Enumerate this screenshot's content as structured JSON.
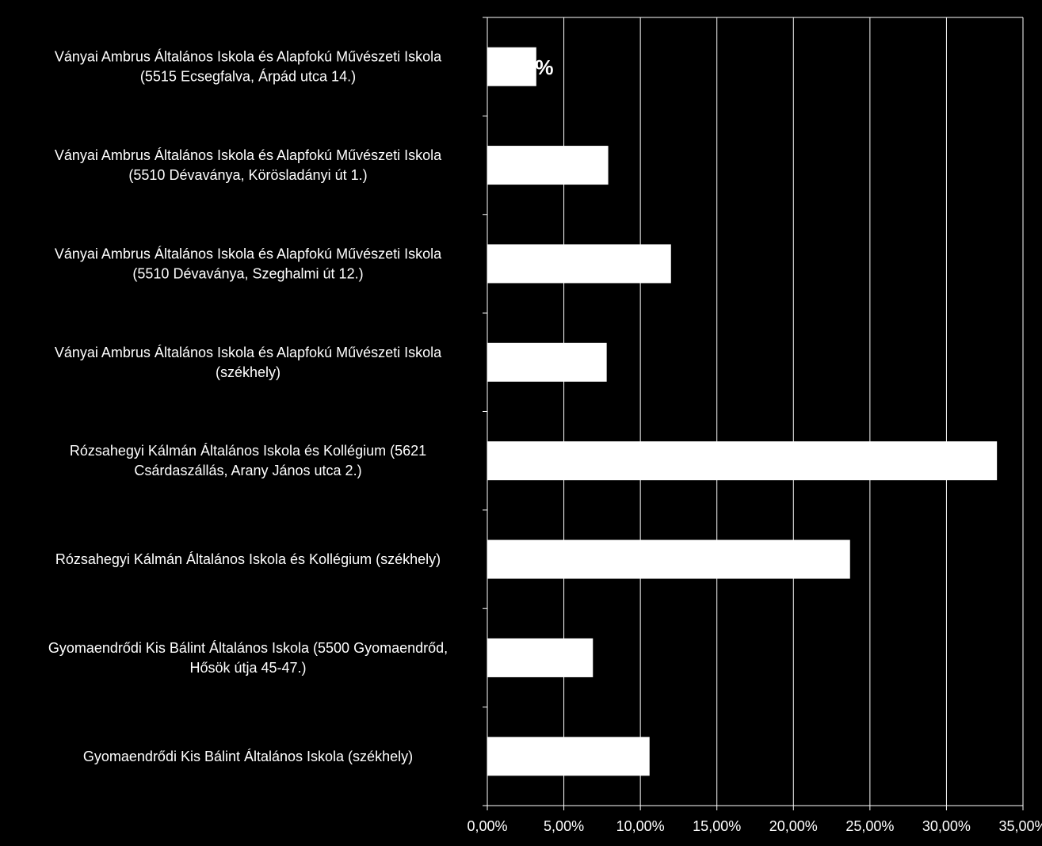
{
  "chart_data": {
    "type": "bar",
    "orientation": "horizontal",
    "categories": [
      [
        "Ványai Ambrus Általános Iskola és Alapfokú Művészeti Iskola",
        "(5515 Ecsegfalva, Árpád utca 14.)"
      ],
      [
        "Ványai Ambrus Általános Iskola és Alapfokú Művészeti Iskola",
        "(5510 Dévaványa, Körösladányi út 1.)"
      ],
      [
        "Ványai Ambrus Általános Iskola és Alapfokú Művészeti Iskola",
        "(5510 Dévaványa, Szeghalmi út 12.)"
      ],
      [
        "Ványai Ambrus Általános Iskola és Alapfokú Művészeti Iskola",
        "(székhely)"
      ],
      [
        "Rózsahegyi Kálmán Általános Iskola és Kollégium (5621",
        "Csárdaszállás, Arany János utca 2.)"
      ],
      [
        "Rózsahegyi Kálmán Általános Iskola és Kollégium (székhely)"
      ],
      [
        "Gyomaendrődi Kis Bálint Általános Iskola (5500 Gyomaendrőd,",
        "Hősök útja 45-47.)"
      ],
      [
        "Gyomaendrődi Kis Bálint Általános Iskola (székhely)"
      ]
    ],
    "values": [
      3.2,
      7.9,
      12.0,
      7.8,
      33.3,
      23.7,
      6.9,
      10.6
    ],
    "data_labels": [
      "3,2%",
      "",
      "",
      "",
      "",
      "",
      "",
      ""
    ],
    "xlim": [
      0,
      35
    ],
    "xticks": [
      "0,00%",
      "5,00%",
      "10,00%",
      "15,00%",
      "20,00%",
      "25,00%",
      "30,00%",
      "35,00%"
    ],
    "grid": true,
    "bar_color": "#ffffff",
    "background": "#000000",
    "text_color": "#ffffff"
  }
}
